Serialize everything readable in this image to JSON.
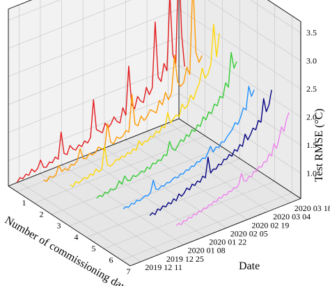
{
  "chart_data": {
    "type": "line",
    "projection": "3d",
    "xlabel": "Number of commissioning days",
    "ylabel": "Date",
    "zlabel": "Test RMSE (°C)",
    "x_ticks": [
      "1",
      "2",
      "3",
      "4",
      "5",
      "6",
      "7"
    ],
    "xlim": [
      0.5,
      7.5
    ],
    "y_ticks": [
      "2019 12 11",
      "2019 12 25",
      "2020 01 08",
      "2020 01 22",
      "2020 02 05",
      "2020 02 19",
      "2020 03 04",
      "2020 03 18"
    ],
    "ylim": [
      "2019 12 04",
      "2020 03 25"
    ],
    "z_ticks": [
      "1.0",
      "1.5",
      "2.0",
      "2.5",
      "3.0",
      "3.5"
    ],
    "zlim": [
      0.55,
      3.7
    ],
    "grid": true,
    "series": [
      {
        "color": "#e31a1c",
        "x": 1,
        "values": [
          0.72,
          0.78,
          0.74,
          0.8,
          0.76,
          0.85,
          0.78,
          0.82,
          0.95,
          0.8,
          0.78,
          0.85,
          0.82,
          0.9,
          0.84,
          1.3,
          0.9,
          0.86,
          1.0,
          0.92,
          0.88,
          0.95,
          0.9,
          0.98,
          0.92,
          1.0,
          1.65,
          1.1,
          1.05,
          1.0,
          1.15,
          1.05,
          1.1,
          1.2,
          1.1,
          1.05,
          1.3,
          1.15,
          2.0,
          1.3,
          1.2,
          1.4,
          1.3,
          1.25,
          1.5,
          1.35,
          1.45,
          2.6,
          1.6,
          1.5,
          1.8,
          1.65,
          3.0,
          1.9,
          1.7,
          3.6,
          2.2,
          1.6
        ]
      },
      {
        "color": "#ff9900",
        "x": 2,
        "values": [
          0.9,
          0.85,
          0.92,
          0.88,
          0.9,
          1.05,
          0.92,
          0.95,
          0.9,
          0.98,
          0.95,
          1.0,
          1.2,
          1.0,
          0.98,
          1.05,
          1.0,
          1.02,
          1.1,
          1.05,
          1.0,
          1.45,
          1.1,
          1.05,
          1.15,
          1.1,
          1.12,
          1.2,
          1.15,
          1.8,
          1.25,
          1.2,
          1.35,
          1.25,
          1.3,
          1.4,
          1.35,
          1.3,
          1.5,
          1.4,
          1.6,
          1.45,
          1.55,
          2.2,
          1.7,
          1.6,
          1.65,
          1.9,
          1.75,
          3.4,
          2.1,
          1.9,
          2.0
        ]
      },
      {
        "color": "#ffd700",
        "x": 3,
        "values": [
          0.95,
          0.9,
          0.97,
          0.92,
          0.95,
          0.98,
          0.94,
          1.0,
          0.96,
          1.05,
          0.98,
          1.0,
          1.4,
          1.05,
          1.0,
          1.02,
          1.08,
          1.05,
          1.1,
          1.06,
          1.12,
          1.08,
          1.15,
          1.1,
          1.25,
          1.15,
          1.2,
          1.18,
          1.25,
          1.22,
          1.3,
          1.25,
          1.35,
          1.3,
          1.55,
          1.35,
          1.4,
          1.45,
          1.4,
          1.6,
          1.5,
          1.55,
          1.7,
          1.6,
          1.75,
          1.85,
          2.1,
          1.9,
          1.95,
          2.1,
          2.8,
          2.2,
          2.6
        ]
      },
      {
        "color": "#33cc33",
        "x": 4,
        "values": [
          0.85,
          0.88,
          0.84,
          0.9,
          0.86,
          0.92,
          0.88,
          0.9,
          1.0,
          0.92,
          1.05,
          0.95,
          0.93,
          1.0,
          0.96,
          0.98,
          1.02,
          0.98,
          1.05,
          1.0,
          1.08,
          1.05,
          1.1,
          1.07,
          1.15,
          1.12,
          1.35,
          1.2,
          1.15,
          1.22,
          1.3,
          1.25,
          1.35,
          1.3,
          1.4,
          1.35,
          1.45,
          1.4,
          1.55,
          1.48,
          1.6,
          1.55,
          1.7,
          1.65,
          1.8,
          1.75,
          2.0,
          1.9,
          2.5,
          2.2,
          2.3
        ]
      },
      {
        "color": "#1e90ff",
        "x": 5,
        "values": [
          0.8,
          0.82,
          0.79,
          0.84,
          0.81,
          0.86,
          0.83,
          0.85,
          0.88,
          0.86,
          0.9,
          1.1,
          0.92,
          0.9,
          0.94,
          0.92,
          0.96,
          0.94,
          0.98,
          1.0,
          0.97,
          1.02,
          1.0,
          1.05,
          1.03,
          1.08,
          1.06,
          1.12,
          1.1,
          1.15,
          1.12,
          1.2,
          1.3,
          1.18,
          1.25,
          1.22,
          1.3,
          1.28,
          1.35,
          1.4,
          1.45,
          1.55,
          1.5,
          1.6,
          1.75,
          1.7,
          2.1,
          1.9,
          2.0
        ]
      },
      {
        "color": "#000080",
        "x": 6,
        "values": [
          0.82,
          0.85,
          0.8,
          0.88,
          0.84,
          0.9,
          0.86,
          0.92,
          0.88,
          0.95,
          0.9,
          1.0,
          0.94,
          0.98,
          1.05,
          1.0,
          1.08,
          1.04,
          1.1,
          1.06,
          1.15,
          1.1,
          1.45,
          1.15,
          1.2,
          1.18,
          1.25,
          1.22,
          1.3,
          1.28,
          1.35,
          1.3,
          1.4,
          1.35,
          1.45,
          1.4,
          1.6,
          1.48,
          1.55,
          1.65,
          1.6,
          1.75,
          1.7,
          2.1,
          1.85,
          1.95,
          2.2
        ]
      },
      {
        "color": "#ee82ee",
        "x": 7,
        "values": [
          0.78,
          0.8,
          0.76,
          0.82,
          0.79,
          0.84,
          0.81,
          0.86,
          0.83,
          0.88,
          0.85,
          0.9,
          0.87,
          0.92,
          0.9,
          0.95,
          0.92,
          0.98,
          0.95,
          1.0,
          0.97,
          1.02,
          1.0,
          1.05,
          1.03,
          1.08,
          1.25,
          1.1,
          1.08,
          1.15,
          1.12,
          1.2,
          1.18,
          1.25,
          1.22,
          1.3,
          1.28,
          1.4,
          1.35,
          1.55,
          1.45,
          1.6,
          1.8,
          1.7,
          1.9,
          2.0
        ]
      }
    ]
  }
}
